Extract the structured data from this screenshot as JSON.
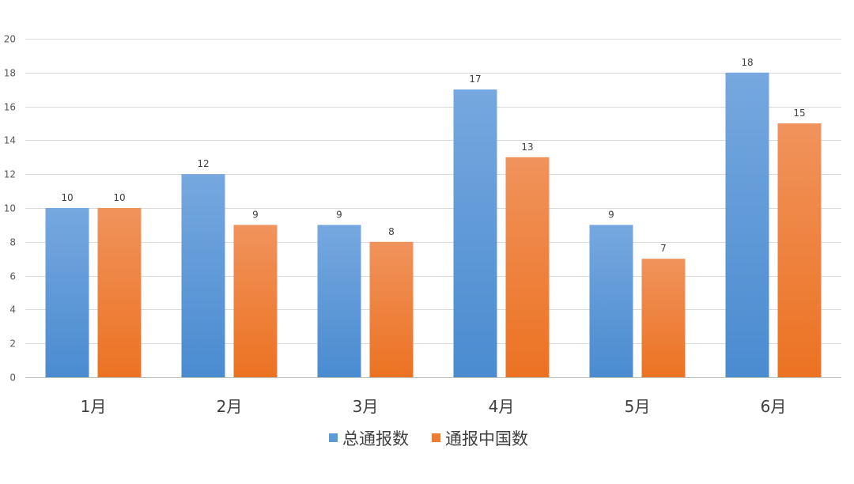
{
  "chart_data": {
    "type": "bar",
    "categories": [
      "1月",
      "2月",
      "3月",
      "4月",
      "5月",
      "6月"
    ],
    "series": [
      {
        "name": "总通报数",
        "values": [
          10,
          12,
          9,
          17,
          9,
          18
        ],
        "color": "#5b9bd5"
      },
      {
        "name": "通报中国数",
        "values": [
          10,
          9,
          8,
          13,
          7,
          15
        ],
        "color": "#ed7d31"
      }
    ],
    "ylim": [
      0,
      20
    ],
    "yticks": [
      0,
      2,
      4,
      6,
      8,
      10,
      12,
      14,
      16,
      18,
      20
    ],
    "grid": true,
    "legend": "bottom-center",
    "data_labels": true
  }
}
